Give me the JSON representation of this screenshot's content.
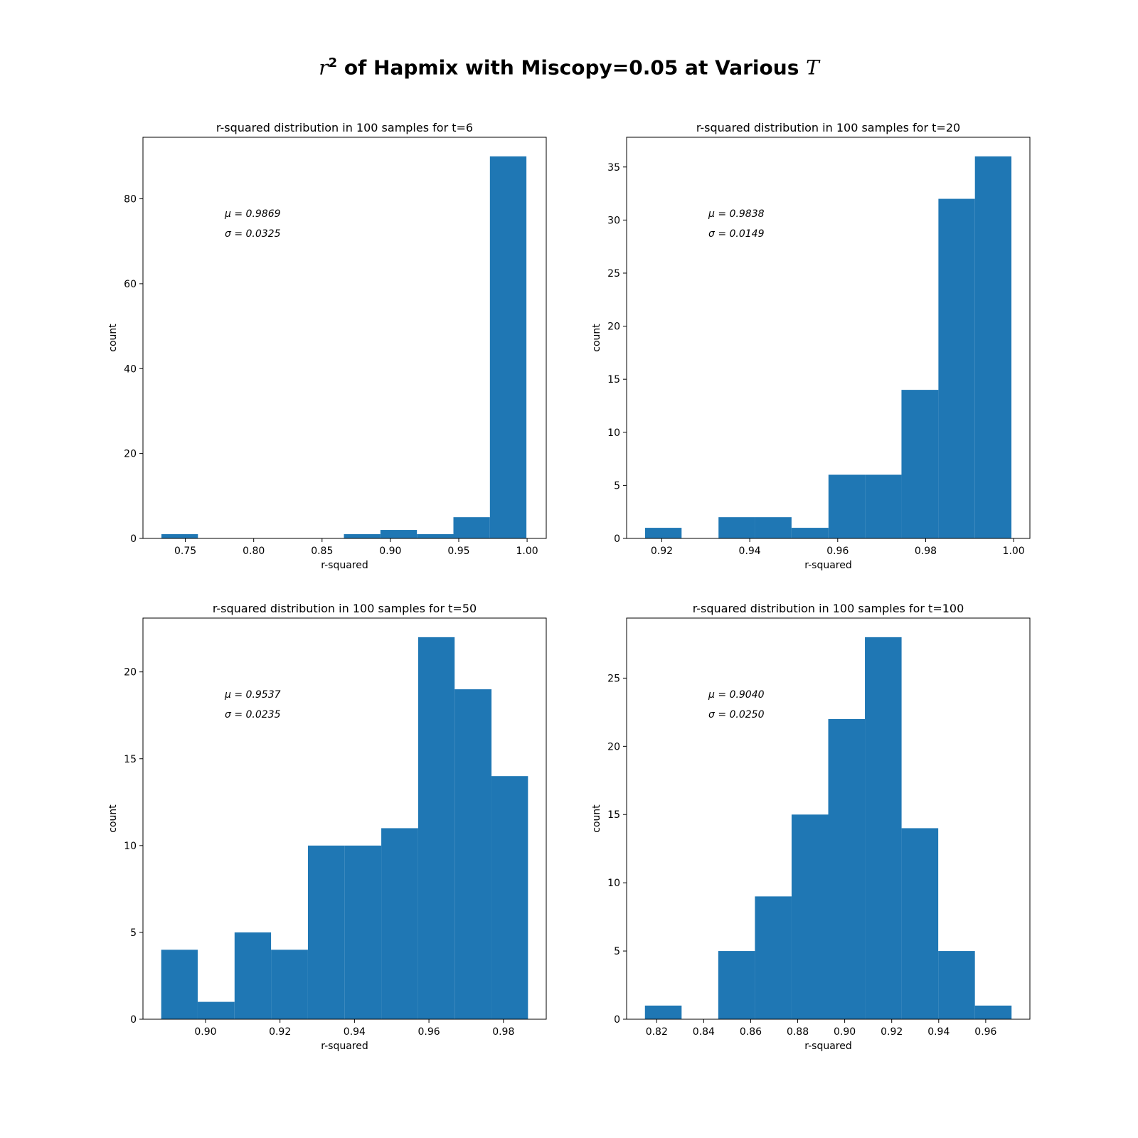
{
  "figure": {
    "suptitle_prefix": "r",
    "suptitle_sup": "2",
    "suptitle_middle": " of Hapmix with Miscopy=0.05 at Various ",
    "suptitle_suffix": "T"
  },
  "chart_data": [
    {
      "type": "bar",
      "title": "r-squared distribution in 100 samples for t=6",
      "xlabel": "r-squared",
      "ylabel": "count",
      "bin_edges": [
        0.7325,
        0.7592,
        0.7859,
        0.8126,
        0.8393,
        0.866,
        0.8927,
        0.9194,
        0.9461,
        0.9728,
        0.9995
      ],
      "values": [
        1,
        0,
        0,
        0,
        0,
        1,
        2,
        1,
        5,
        90
      ],
      "xlim": [
        0.719,
        1.014
      ],
      "ylim": [
        0,
        94.5
      ],
      "xticks": [
        0.75,
        0.8,
        0.85,
        0.9,
        0.95,
        1.0
      ],
      "xtick_labels": [
        "0.75",
        "0.80",
        "0.85",
        "0.90",
        "0.95",
        "1.00"
      ],
      "yticks": [
        0,
        20,
        40,
        60,
        80
      ],
      "ytick_labels": [
        "0",
        "20",
        "40",
        "60",
        "80"
      ],
      "annotation_mu": "μ = 0.9869",
      "annotation_sigma": "σ = 0.0325",
      "color": "#1f77b4",
      "grid": false
    },
    {
      "type": "bar",
      "title": "r-squared distribution in 100 samples for t=20",
      "xlabel": "r-squared",
      "ylabel": "count",
      "bin_edges": [
        0.9162,
        0.9245,
        0.9329,
        0.9412,
        0.9495,
        0.9579,
        0.9662,
        0.9745,
        0.9829,
        0.9912,
        0.9995
      ],
      "values": [
        1,
        0,
        2,
        2,
        1,
        6,
        6,
        14,
        32,
        36
      ],
      "xlim": [
        0.912,
        1.0037
      ],
      "ylim": [
        0,
        37.8
      ],
      "xticks": [
        0.92,
        0.94,
        0.96,
        0.98,
        1.0
      ],
      "xtick_labels": [
        "0.92",
        "0.94",
        "0.96",
        "0.98",
        "1.00"
      ],
      "yticks": [
        0,
        5,
        10,
        15,
        20,
        25,
        30,
        35
      ],
      "ytick_labels": [
        "0",
        "5",
        "10",
        "15",
        "20",
        "25",
        "30",
        "35"
      ],
      "annotation_mu": "μ = 0.9838",
      "annotation_sigma": "σ = 0.0149",
      "color": "#1f77b4",
      "grid": false
    },
    {
      "type": "bar",
      "title": "r-squared distribution in 100 samples for t=50",
      "xlabel": "r-squared",
      "ylabel": "count",
      "bin_edges": [
        0.8881,
        0.8979,
        0.9078,
        0.9176,
        0.9275,
        0.9373,
        0.9472,
        0.9571,
        0.9669,
        0.9768,
        0.9866
      ],
      "values": [
        4,
        1,
        5,
        4,
        10,
        10,
        11,
        22,
        19,
        14
      ],
      "xlim": [
        0.8832,
        0.9915
      ],
      "ylim": [
        0,
        23.1
      ],
      "xticks": [
        0.9,
        0.92,
        0.94,
        0.96,
        0.98
      ],
      "xtick_labels": [
        "0.90",
        "0.92",
        "0.94",
        "0.96",
        "0.98"
      ],
      "yticks": [
        0,
        5,
        10,
        15,
        20
      ],
      "ytick_labels": [
        "0",
        "5",
        "10",
        "15",
        "20"
      ],
      "annotation_mu": "μ = 0.9537",
      "annotation_sigma": "σ = 0.0235",
      "color": "#1f77b4",
      "grid": false
    },
    {
      "type": "bar",
      "title": "r-squared distribution in 100 samples for t=100",
      "xlabel": "r-squared",
      "ylabel": "count",
      "bin_edges": [
        0.815,
        0.8306,
        0.8462,
        0.8618,
        0.8774,
        0.893,
        0.9086,
        0.9242,
        0.9398,
        0.9554,
        0.971
      ],
      "values": [
        1,
        0,
        5,
        9,
        15,
        22,
        28,
        14,
        5,
        1
      ],
      "xlim": [
        0.8072,
        0.9788
      ],
      "ylim": [
        0,
        29.4
      ],
      "xticks": [
        0.82,
        0.84,
        0.86,
        0.88,
        0.9,
        0.92,
        0.94,
        0.96
      ],
      "xtick_labels": [
        "0.82",
        "0.84",
        "0.86",
        "0.88",
        "0.90",
        "0.92",
        "0.94",
        "0.96"
      ],
      "yticks": [
        0,
        5,
        10,
        15,
        20,
        25
      ],
      "ytick_labels": [
        "0",
        "5",
        "10",
        "15",
        "20",
        "25"
      ],
      "annotation_mu": "μ = 0.9040",
      "annotation_sigma": "σ = 0.0250",
      "color": "#1f77b4",
      "grid": false
    }
  ]
}
